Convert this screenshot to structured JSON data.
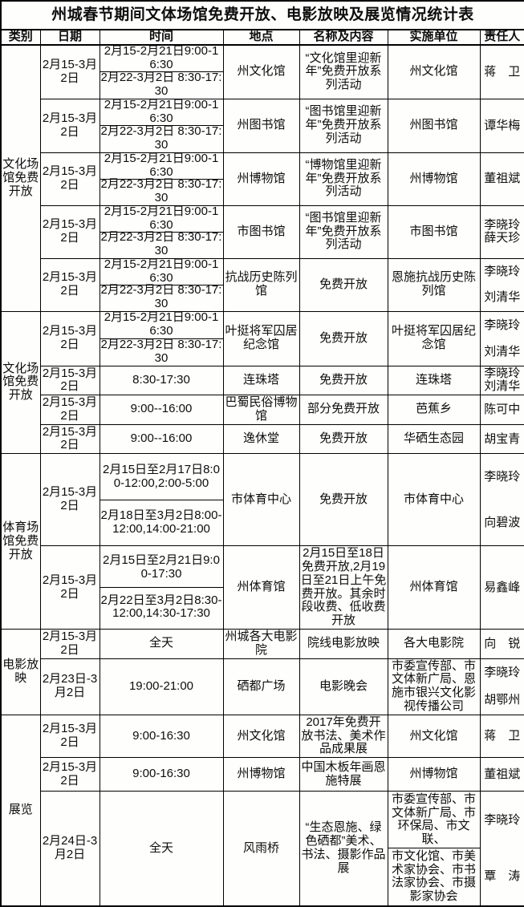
{
  "title": "州城春节期间文体场馆免费开放、电影放映及展览情况统计表",
  "columns": [
    "类别",
    "日期",
    "时间",
    "地点",
    "名称及内容",
    "实施单位",
    "责任人"
  ],
  "rows": [
    {
      "category": "文化场馆免费开放",
      "category_rowspan": 5,
      "date": "2月15-3月2日",
      "time": [
        "2月15-2月21日9:00-16:30",
        "2月22-3月2日 8:30-17:30"
      ],
      "place": "州文化馆",
      "content": "“文化馆里迎新年”免费开放系列活动",
      "unit": "州文化馆",
      "person": [
        "蒋　卫"
      ]
    },
    {
      "date": "2月15-3月2日",
      "time": [
        "2月15-2月21日9:00-16:30",
        "2月22-3月2日 8:30-17:30"
      ],
      "place": "州图书馆",
      "content": "“图书馆里迎新年”免费开放系列活动",
      "unit": "州图书馆",
      "person": [
        "谭华梅"
      ]
    },
    {
      "date": "2月15-3月2日",
      "time": [
        "2月15-2月21日9:00-16:30",
        "2月22-3月2日 8:30-17:30"
      ],
      "place": "州博物馆",
      "content": "“博物馆里迎新年”免费开放系列活动",
      "unit": "州博物馆",
      "person": [
        "董祖斌"
      ]
    },
    {
      "date": "2月15-3月2日",
      "time": [
        "2月15-2月21日9:00-16:30",
        "2月22-3月2日 8:30-17:30"
      ],
      "place": "市图书馆",
      "content": "“图书馆里迎新年”免费开放系列活动",
      "unit": "市图书馆",
      "person": [
        "李晓玲",
        "薛天珍"
      ]
    },
    {
      "date": "2月15-3月2日",
      "time": [
        "2月15-2月21日9:00-16:30",
        "2月22-3月2日 8:30-17:30"
      ],
      "place": "抗战历史陈列馆",
      "content": "免费开放",
      "unit": "恩施抗战历史陈列馆",
      "person": [
        "李晓玲",
        "刘清华"
      ],
      "person_spread": true
    },
    {
      "category": "文化场馆免费开放",
      "category_rowspan": 4,
      "date": "2月15-3月2日",
      "time": [
        "2月15-2月21日9:00-16:30",
        "2月22-3月2日 8:30-17:30"
      ],
      "place": "叶挺将军囚居纪念馆",
      "content": "免费开放",
      "unit": "叶挺将军囚居纪念馆",
      "person": [
        "李晓玲",
        "刘清华"
      ],
      "person_spread": true
    },
    {
      "date": "2月15-3月2日",
      "time": "8:30-17:30",
      "place": "连珠塔",
      "content": "免费开放",
      "unit": "连珠塔",
      "person": [
        "李晓玲",
        "刘清华"
      ]
    },
    {
      "date": "2月15-3月2日",
      "time": "9:00--16:00",
      "place": "巴蜀民俗博物馆",
      "content": "部分免费开放",
      "unit": "芭蕉乡",
      "person": [
        "陈可中"
      ]
    },
    {
      "date": "2月15-3月2日",
      "time": "9:00--16:00",
      "place": "逸休堂",
      "content": "免费开放",
      "unit": "华硒生态园",
      "person": [
        "胡宝青"
      ]
    },
    {
      "category": "体育场馆免费开放",
      "category_rowspan": 2,
      "date": "2月15-3月2日",
      "time": [
        "2月15日至2月17日8:00-12:00,2:00-5:00",
        "2月18日至3月2日8:00-12:00,14:00-21:00"
      ],
      "place": "市体育中心",
      "content": "免费开放",
      "unit": "市体育中心",
      "person": [
        "李晓玲",
        "向碧波"
      ],
      "person_spread": true
    },
    {
      "date": "2月15-3月2日",
      "time": [
        "2月15日至2月21日9:00-17:30",
        "2月22日至3月2日8:30-12:00,14:30-17:30"
      ],
      "place": "州体育馆",
      "content": "2月15日至18日免费开放,2月19日至21日上午免费开放。其余时段收费、低收费开放",
      "unit": "州体育馆",
      "person": [
        "易鑫峰"
      ]
    },
    {
      "category": "电影放映",
      "category_rowspan": 2,
      "date": "2月15-3月2日",
      "time": "全天",
      "place": "州城各大电影院",
      "content": "院线电影放映",
      "unit": "各大电影院",
      "person": [
        "向　锐"
      ]
    },
    {
      "date": "2月23日-3月2日",
      "time": "19:00-21:00",
      "place": "硒都广场",
      "content": "电影晚会",
      "unit": "市委宣传部、市文体新广局、恩施市银兴文化影视传播公司",
      "person": [
        "李晓玲",
        "胡鄂州"
      ],
      "person_spread": true
    },
    {
      "category": "展览",
      "category_rowspan": 3,
      "date": "2月15-3月2日",
      "time": "9:00-16:30",
      "place": "州文化馆",
      "content": "2017年免费开放书法、美术作品成果展",
      "unit": "州文化馆",
      "person": [
        "蒋　卫"
      ]
    },
    {
      "date": "2月15-3月2日",
      "time": "9:00-16:30",
      "place": "州博物馆",
      "content": "中国木板年画恩施特展",
      "unit": "州博物馆",
      "person": [
        "董祖斌"
      ]
    },
    {
      "date": "2月24日-3月2日",
      "time": "全天",
      "place": "风雨桥",
      "content": "“生态恩施、绿色硒都”美术、书法、摄影作品展",
      "unit": [
        "市委宣传部、市文体新广局、市环保局、市文联、",
        "市文化馆、市美术家协会、市书法家协会、市摄影家协会"
      ],
      "person": [
        "李晓玲",
        "覃　涛"
      ],
      "person_spread": true
    }
  ]
}
